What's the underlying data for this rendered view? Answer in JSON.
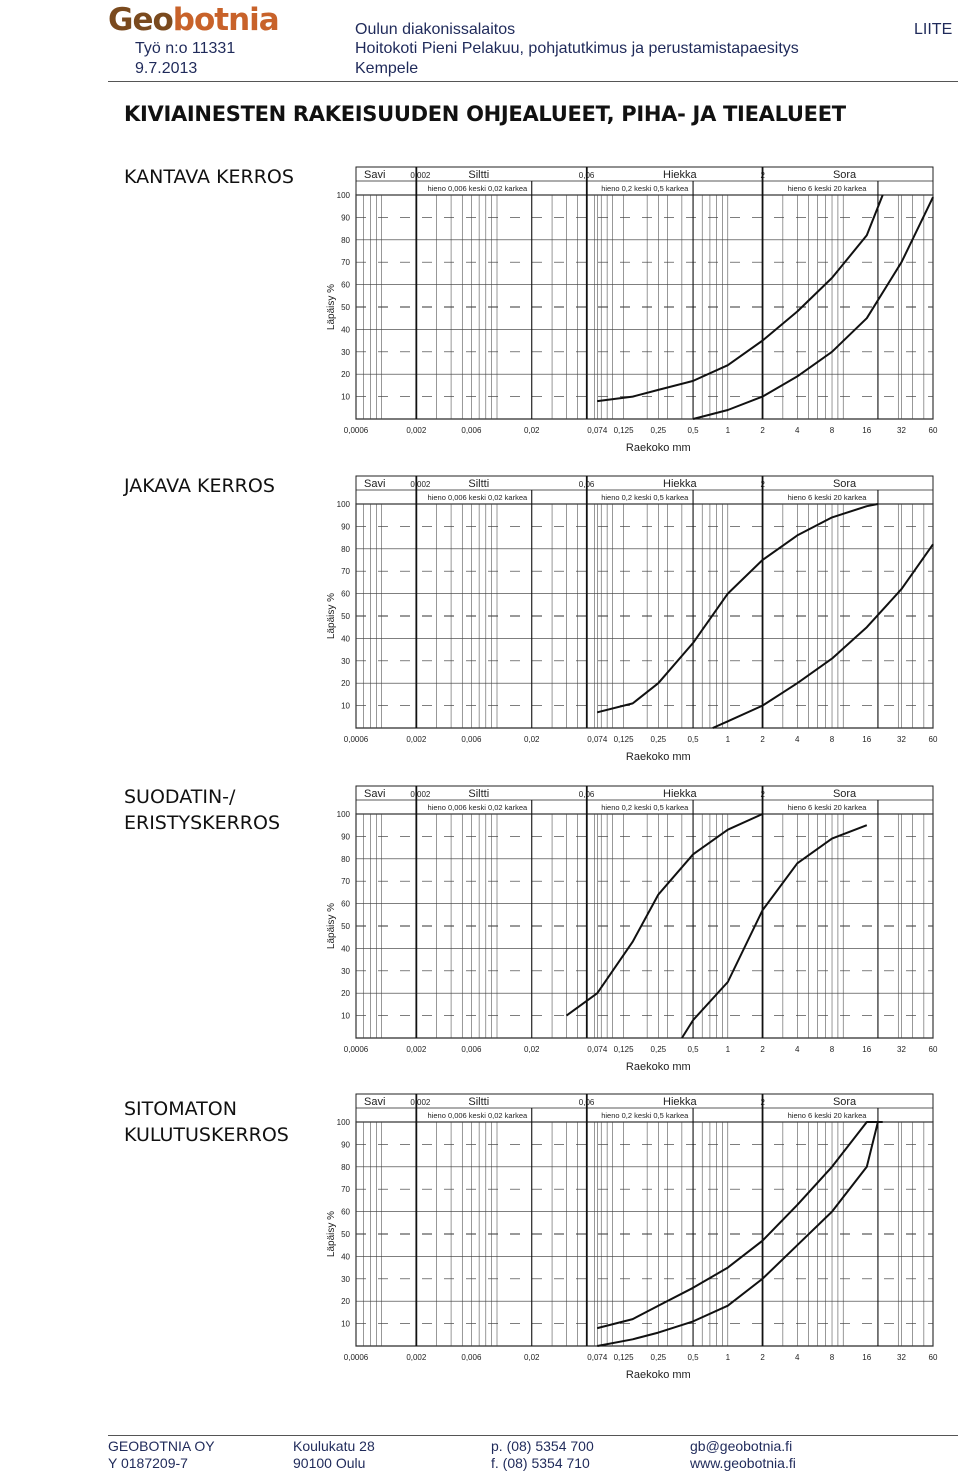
{
  "header": {
    "logo_geo": "Geo",
    "logo_botnia": "botnia",
    "work_no": "Työ n:o 11331",
    "date": "9.7.2013",
    "client": "Oulun diakonissalaitos",
    "project": "Hoitokoti Pieni Pelakuu, pohjatutkimus ja perustamistapaesitys",
    "location": "Kempele",
    "tag": "LIITE"
  },
  "page_title": "KIVIAINESTEN RAKEISUUDEN OHJEALUEET, PIHA- JA TIEALUEET",
  "chart_data": [
    {
      "type": "line",
      "title": "KANTAVA KERROS",
      "xlabel": "Raekoko mm",
      "ylabel": "Läpäisy %",
      "x_scale": "log",
      "x_ticks": [
        "0,0006",
        "0,002",
        "0,006",
        "0,02",
        "0,074",
        "0,125",
        "0,25",
        "0,5",
        "1",
        "2",
        "4",
        "8",
        "16",
        "32",
        "60"
      ],
      "y_ticks": [
        "10",
        "20",
        "30",
        "40",
        "50",
        "60",
        "70",
        "80",
        "90",
        "100"
      ],
      "ylim": [
        0,
        100
      ],
      "grid": true,
      "series": [
        {
          "x": [
            0.074,
            0.15,
            0.25,
            0.5,
            1,
            2,
            4,
            8,
            16,
            22
          ],
          "y": [
            8,
            10,
            13,
            17,
            24,
            35,
            48,
            63,
            82,
            100
          ]
        },
        {
          "x": [
            0.5,
            1,
            2,
            4,
            8,
            16,
            32,
            60
          ],
          "y": [
            0,
            4,
            10,
            19,
            30,
            45,
            70,
            99
          ]
        }
      ]
    },
    {
      "type": "line",
      "title": "JAKAVA KERROS",
      "xlabel": "Raekoko mm",
      "ylabel": "Läpäisy %",
      "x_scale": "log",
      "x_ticks": [
        "0,0006",
        "0,002",
        "0,006",
        "0,02",
        "0,074",
        "0,125",
        "0,25",
        "0,5",
        "1",
        "2",
        "4",
        "8",
        "16",
        "32",
        "60"
      ],
      "y_ticks": [
        "10",
        "20",
        "30",
        "40",
        "50",
        "60",
        "70",
        "80",
        "90",
        "100"
      ],
      "ylim": [
        0,
        100
      ],
      "grid": true,
      "series": [
        {
          "x": [
            0.074,
            0.15,
            0.25,
            0.5,
            1,
            2,
            4,
            8,
            16,
            20
          ],
          "y": [
            7,
            11,
            20,
            38,
            60,
            75,
            86,
            94,
            99,
            100
          ]
        },
        {
          "x": [
            0.74,
            1,
            2,
            4,
            8,
            16,
            32,
            60
          ],
          "y": [
            0,
            3,
            10,
            20,
            31,
            45,
            62,
            82
          ]
        }
      ]
    },
    {
      "type": "line",
      "title": "SUODATIN-/\nERISTYSKERROS",
      "xlabel": "Raekoko mm",
      "ylabel": "Läpäisy %",
      "x_scale": "log",
      "x_ticks": [
        "0,0006",
        "0,002",
        "0,006",
        "0,02",
        "0,074",
        "0,125",
        "0,25",
        "0,5",
        "1",
        "2",
        "4",
        "8",
        "16",
        "32",
        "60"
      ],
      "y_ticks": [
        "10",
        "20",
        "30",
        "40",
        "50",
        "60",
        "70",
        "80",
        "90",
        "100"
      ],
      "ylim": [
        0,
        100
      ],
      "grid": true,
      "series": [
        {
          "x": [
            0.04,
            0.074,
            0.15,
            0.25,
            0.5,
            1,
            2
          ],
          "y": [
            10,
            20,
            43,
            64,
            82,
            93,
            100
          ]
        },
        {
          "x": [
            0.4,
            0.5,
            1,
            2,
            4,
            8,
            16
          ],
          "y": [
            0,
            8,
            25,
            57,
            78,
            89,
            95
          ]
        }
      ]
    },
    {
      "type": "line",
      "title": "SITOMATON\nKULUTUSKERROS",
      "xlabel": "Raekoko mm",
      "ylabel": "Läpäisy %",
      "x_scale": "log",
      "x_ticks": [
        "0,0006",
        "0,002",
        "0,006",
        "0,02",
        "0,074",
        "0,125",
        "0,25",
        "0,5",
        "1",
        "2",
        "4",
        "8",
        "16",
        "32",
        "60"
      ],
      "y_ticks": [
        "10",
        "20",
        "30",
        "40",
        "50",
        "60",
        "70",
        "80",
        "90",
        "100"
      ],
      "ylim": [
        0,
        100
      ],
      "grid": true,
      "series": [
        {
          "x": [
            0.074,
            0.15,
            0.25,
            0.5,
            1,
            2,
            4,
            8,
            16,
            22
          ],
          "y": [
            8,
            12,
            18,
            26,
            35,
            47,
            63,
            80,
            100,
            100
          ]
        },
        {
          "x": [
            0.074,
            0.15,
            0.25,
            0.5,
            1,
            2,
            4,
            8,
            16,
            20
          ],
          "y": [
            0,
            3,
            6,
            11,
            18,
            30,
            45,
            60,
            80,
            100
          ]
        }
      ]
    }
  ],
  "chart_header": {
    "savi": "Savi",
    "siltti": "Siltti",
    "hiekka": "Hiekka",
    "sora": "Sora",
    "b_0002": "0,002",
    "b_006": "0,06",
    "b_2": "2",
    "siltti_sub": "hieno 0,006  keski  0,02 karkea",
    "hiekka_sub": "hieno  0,2  keski  0,5 karkea",
    "sora_sub": "hieno  6  keski  20 karkea"
  },
  "footer": {
    "company": "GEOBOTNIA OY",
    "vat": "Y 0187209-7",
    "street": "Koulukatu 28",
    "city": "90100 Oulu",
    "phone": "p. (08) 5354 700",
    "fax": "f.  (08) 5354 710",
    "email": "gb@geobotnia.fi",
    "web": "www.geobotnia.fi"
  }
}
